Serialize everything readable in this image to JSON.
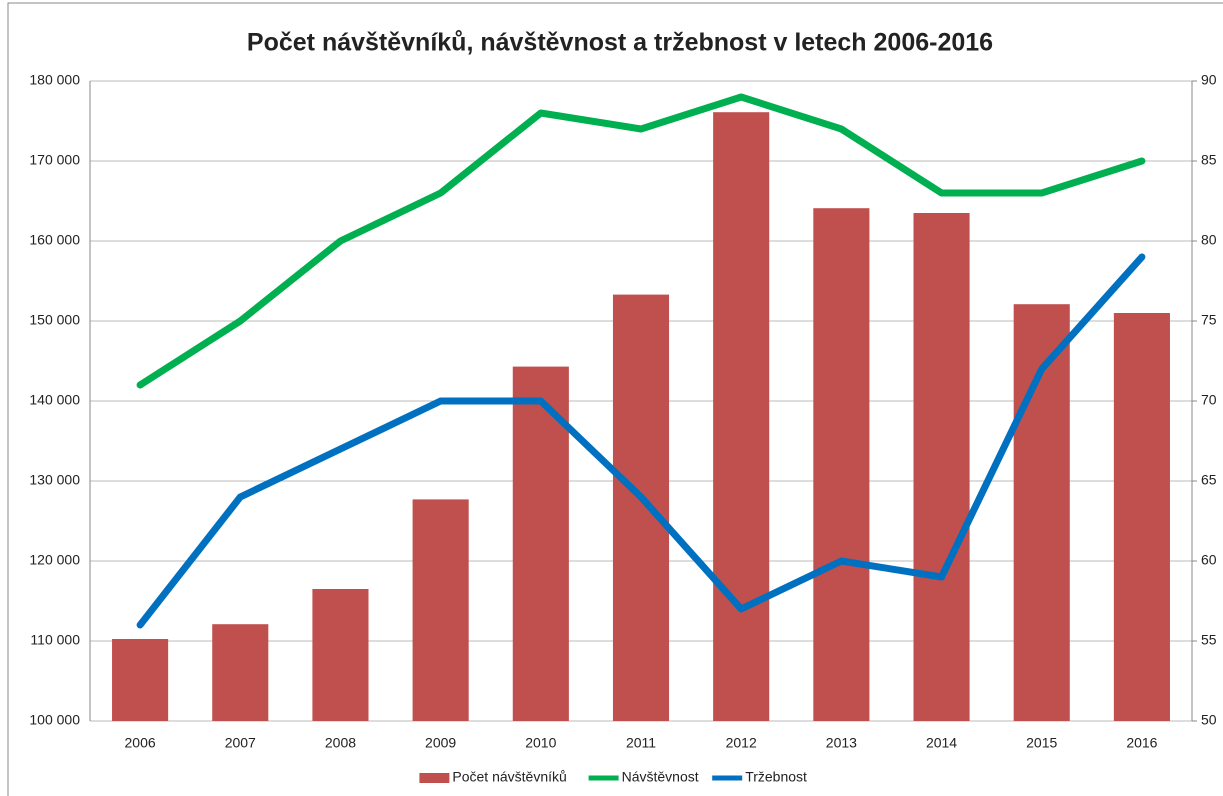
{
  "chart_data": {
    "type": "combo",
    "title": "Počet návštěvníků, návštěvnost a tržebnost v letech 2006-2016",
    "categories": [
      "2006",
      "2007",
      "2008",
      "2009",
      "2010",
      "2011",
      "2012",
      "2013",
      "2014",
      "2015",
      "2016"
    ],
    "series": [
      {
        "name": "Počet návštěvníků",
        "type": "bar",
        "color": "#c0504d",
        "axis": "y",
        "values": [
          110250,
          112100,
          116500,
          127700,
          144300,
          153300,
          176100,
          164100,
          163500,
          152100,
          151000
        ]
      },
      {
        "name": "Návštěvnost",
        "type": "line",
        "color": "#00b050",
        "axis": "y2",
        "values": [
          71,
          75,
          80,
          83,
          88,
          87,
          89,
          87,
          83,
          83,
          85
        ]
      },
      {
        "name": "Tržebnost",
        "type": "line",
        "color": "#0070c0",
        "axis": "y2",
        "values": [
          56,
          64,
          67,
          70,
          70,
          64,
          57,
          60,
          59,
          72,
          79
        ]
      }
    ],
    "ylim": [
      100000,
      180000
    ],
    "yticks": [
      {
        "value": 100000,
        "label": "100 000"
      },
      {
        "value": 110000,
        "label": "110 000"
      },
      {
        "value": 120000,
        "label": "120 000"
      },
      {
        "value": 130000,
        "label": "130 000"
      },
      {
        "value": 140000,
        "label": "140 000"
      },
      {
        "value": 150000,
        "label": "150 000"
      },
      {
        "value": 160000,
        "label": "160 000"
      },
      {
        "value": 170000,
        "label": "170 000"
      },
      {
        "value": 180000,
        "label": "180 000"
      }
    ],
    "y2lim": [
      50,
      90
    ],
    "y2ticks": [
      50,
      55,
      60,
      65,
      70,
      75,
      80,
      85,
      90
    ],
    "grid": true,
    "legend": "bottom"
  }
}
